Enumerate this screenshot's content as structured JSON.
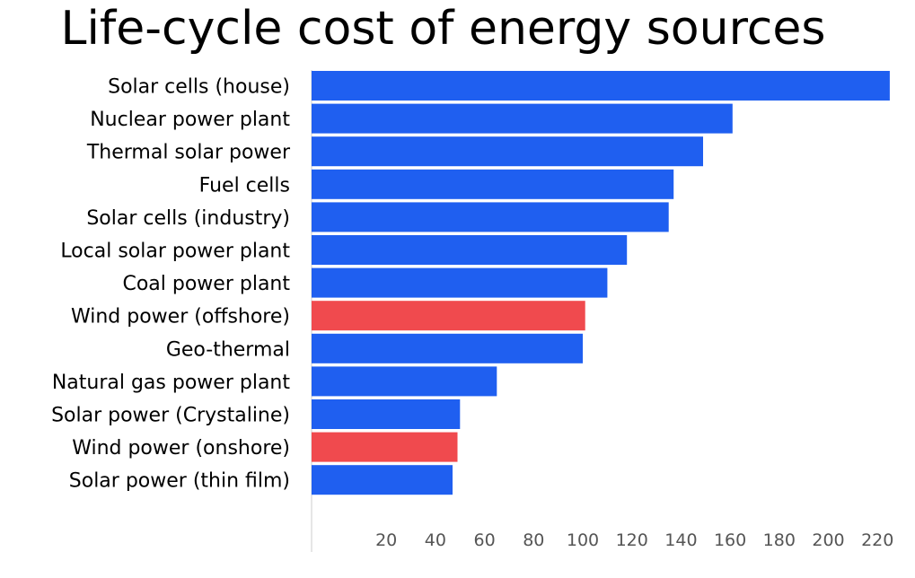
{
  "chart_data": {
    "type": "bar",
    "orientation": "horizontal",
    "title": "Life-cycle cost of energy sources",
    "xlabel": "",
    "ylabel": "",
    "categories": [
      "Solar cells (house)",
      "Nuclear power plant",
      "Thermal solar power",
      "Fuel cells",
      "Solar cells (industry)",
      "Local solar power plant",
      "Coal power plant",
      "Wind power (offshore)",
      "Geo-thermal",
      "Natural gas power plant",
      "Solar power (Crystaline)",
      "Wind power (onshore)",
      "Solar power (thin film)"
    ],
    "values": [
      225,
      161,
      149,
      137,
      135,
      118,
      110,
      101,
      100,
      65,
      50,
      49,
      47
    ],
    "bar_colors": [
      "#1f5ff0",
      "#1f5ff0",
      "#1f5ff0",
      "#1f5ff0",
      "#1f5ff0",
      "#1f5ff0",
      "#1f5ff0",
      "#f04a4e",
      "#1f5ff0",
      "#1f5ff0",
      "#1f5ff0",
      "#f04a4e",
      "#1f5ff0"
    ],
    "xticks": [
      20,
      40,
      60,
      80,
      100,
      120,
      140,
      160,
      180,
      200,
      220
    ],
    "xlim": [
      0,
      230
    ],
    "grid": false,
    "legend": "none",
    "colors": {
      "primary": "#1f5ff0",
      "highlight": "#f04a4e",
      "axis": "#cccccc",
      "tick_text": "#555555"
    }
  }
}
